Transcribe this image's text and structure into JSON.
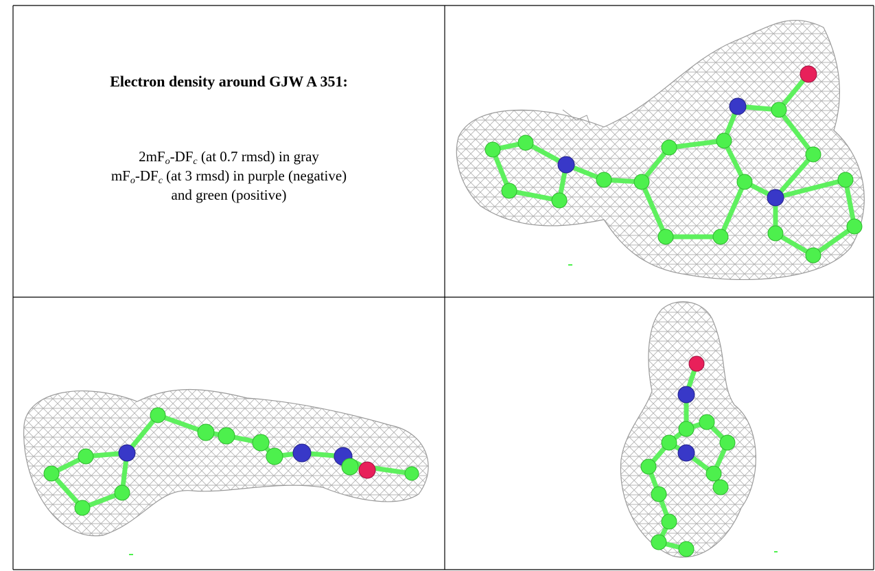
{
  "caption": {
    "title": "Electron density around GJW A 351:",
    "lines": [
      [
        {
          "text": "2mF"
        },
        {
          "sub": "o"
        },
        {
          "text": "-DF"
        },
        {
          "sub": "c"
        },
        {
          "text": " (at 0.7 rmsd) in gray"
        }
      ],
      [
        {
          "text": "mF"
        },
        {
          "sub": "o"
        },
        {
          "text": "-DF"
        },
        {
          "sub": "c"
        },
        {
          "text": " (at 3 rmsd) in purple (negative)"
        }
      ],
      [
        {
          "text": "and green (positive)"
        }
      ]
    ]
  }
}
